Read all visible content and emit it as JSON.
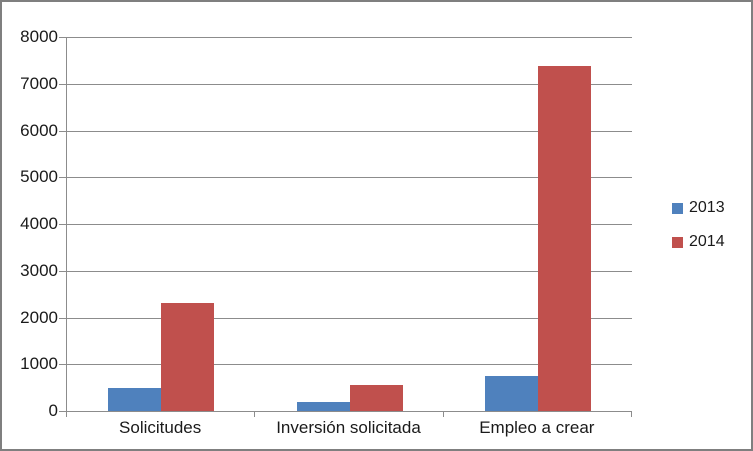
{
  "chart_data": {
    "type": "bar",
    "title": "",
    "xlabel": "",
    "ylabel": "",
    "categories": [
      "Solicitudes",
      "Inversión solicitada",
      "Empleo a crear"
    ],
    "series": [
      {
        "name": "2013",
        "color": "#4F81BD",
        "values": [
          500,
          190,
          750
        ]
      },
      {
        "name": "2014",
        "color": "#C0504D",
        "values": [
          2320,
          560,
          7390
        ]
      }
    ],
    "ylim": [
      0,
      8000
    ],
    "yticks": [
      0,
      1000,
      2000,
      3000,
      4000,
      5000,
      6000,
      7000,
      8000
    ],
    "grid": true,
    "legend_position": "right"
  },
  "colors": {
    "bar_2013": "#4F81BD",
    "bar_2014": "#C0504D",
    "gridline": "#8c8c8c",
    "axis_line": "#8c8c8c",
    "label_text": "#1a1a1a",
    "chart_border": "#7f7f7f",
    "background": "#ffffff"
  }
}
